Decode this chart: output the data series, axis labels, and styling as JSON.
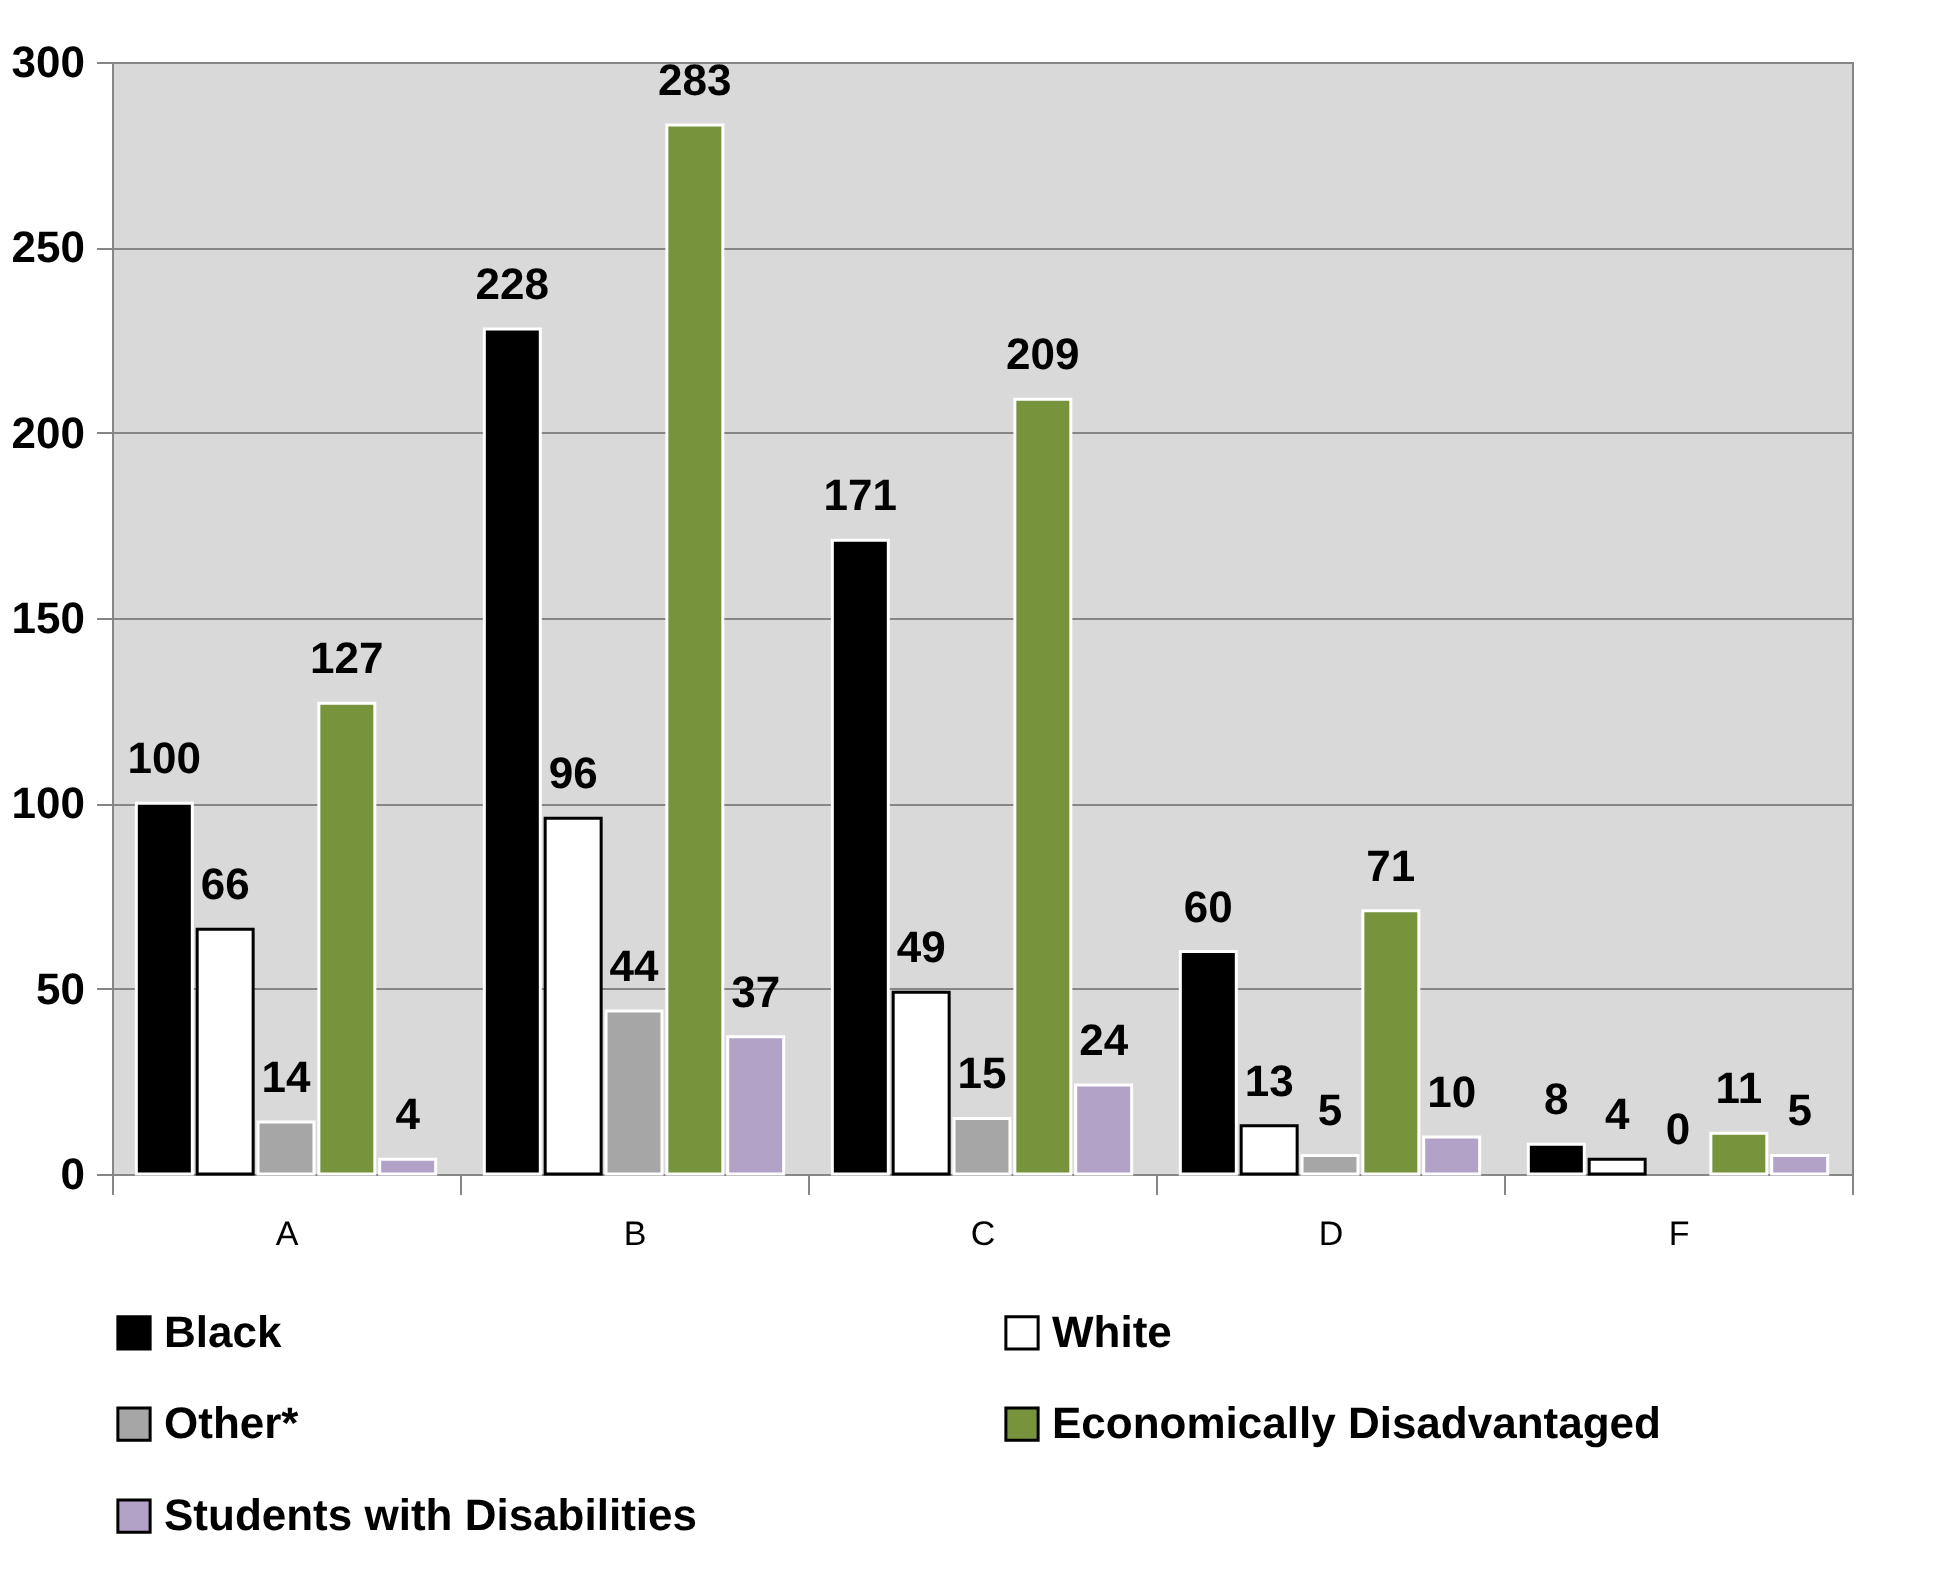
{
  "chart_data": {
    "type": "bar",
    "categories": [
      "A",
      "B",
      "C",
      "D",
      "F"
    ],
    "series": [
      {
        "name": "Black",
        "color": "#000000",
        "values": [
          100,
          228,
          171,
          60,
          8
        ]
      },
      {
        "name": "White",
        "color": "#ffffff",
        "values": [
          66,
          96,
          49,
          13,
          4
        ]
      },
      {
        "name": "Other*",
        "color": "#a6a6a6",
        "values": [
          14,
          44,
          15,
          5,
          0
        ]
      },
      {
        "name": "Economically Disadvantaged",
        "color": "#77933c",
        "values": [
          127,
          283,
          209,
          71,
          11
        ]
      },
      {
        "name": "Students with Disabilities",
        "color": "#b3a2c7",
        "values": [
          4,
          37,
          24,
          10,
          5
        ]
      }
    ],
    "ylim": [
      0,
      300
    ],
    "yticks": [
      0,
      50,
      100,
      150,
      200,
      250,
      300
    ],
    "grid": "y",
    "legend": "bottom",
    "data_labels": true
  }
}
